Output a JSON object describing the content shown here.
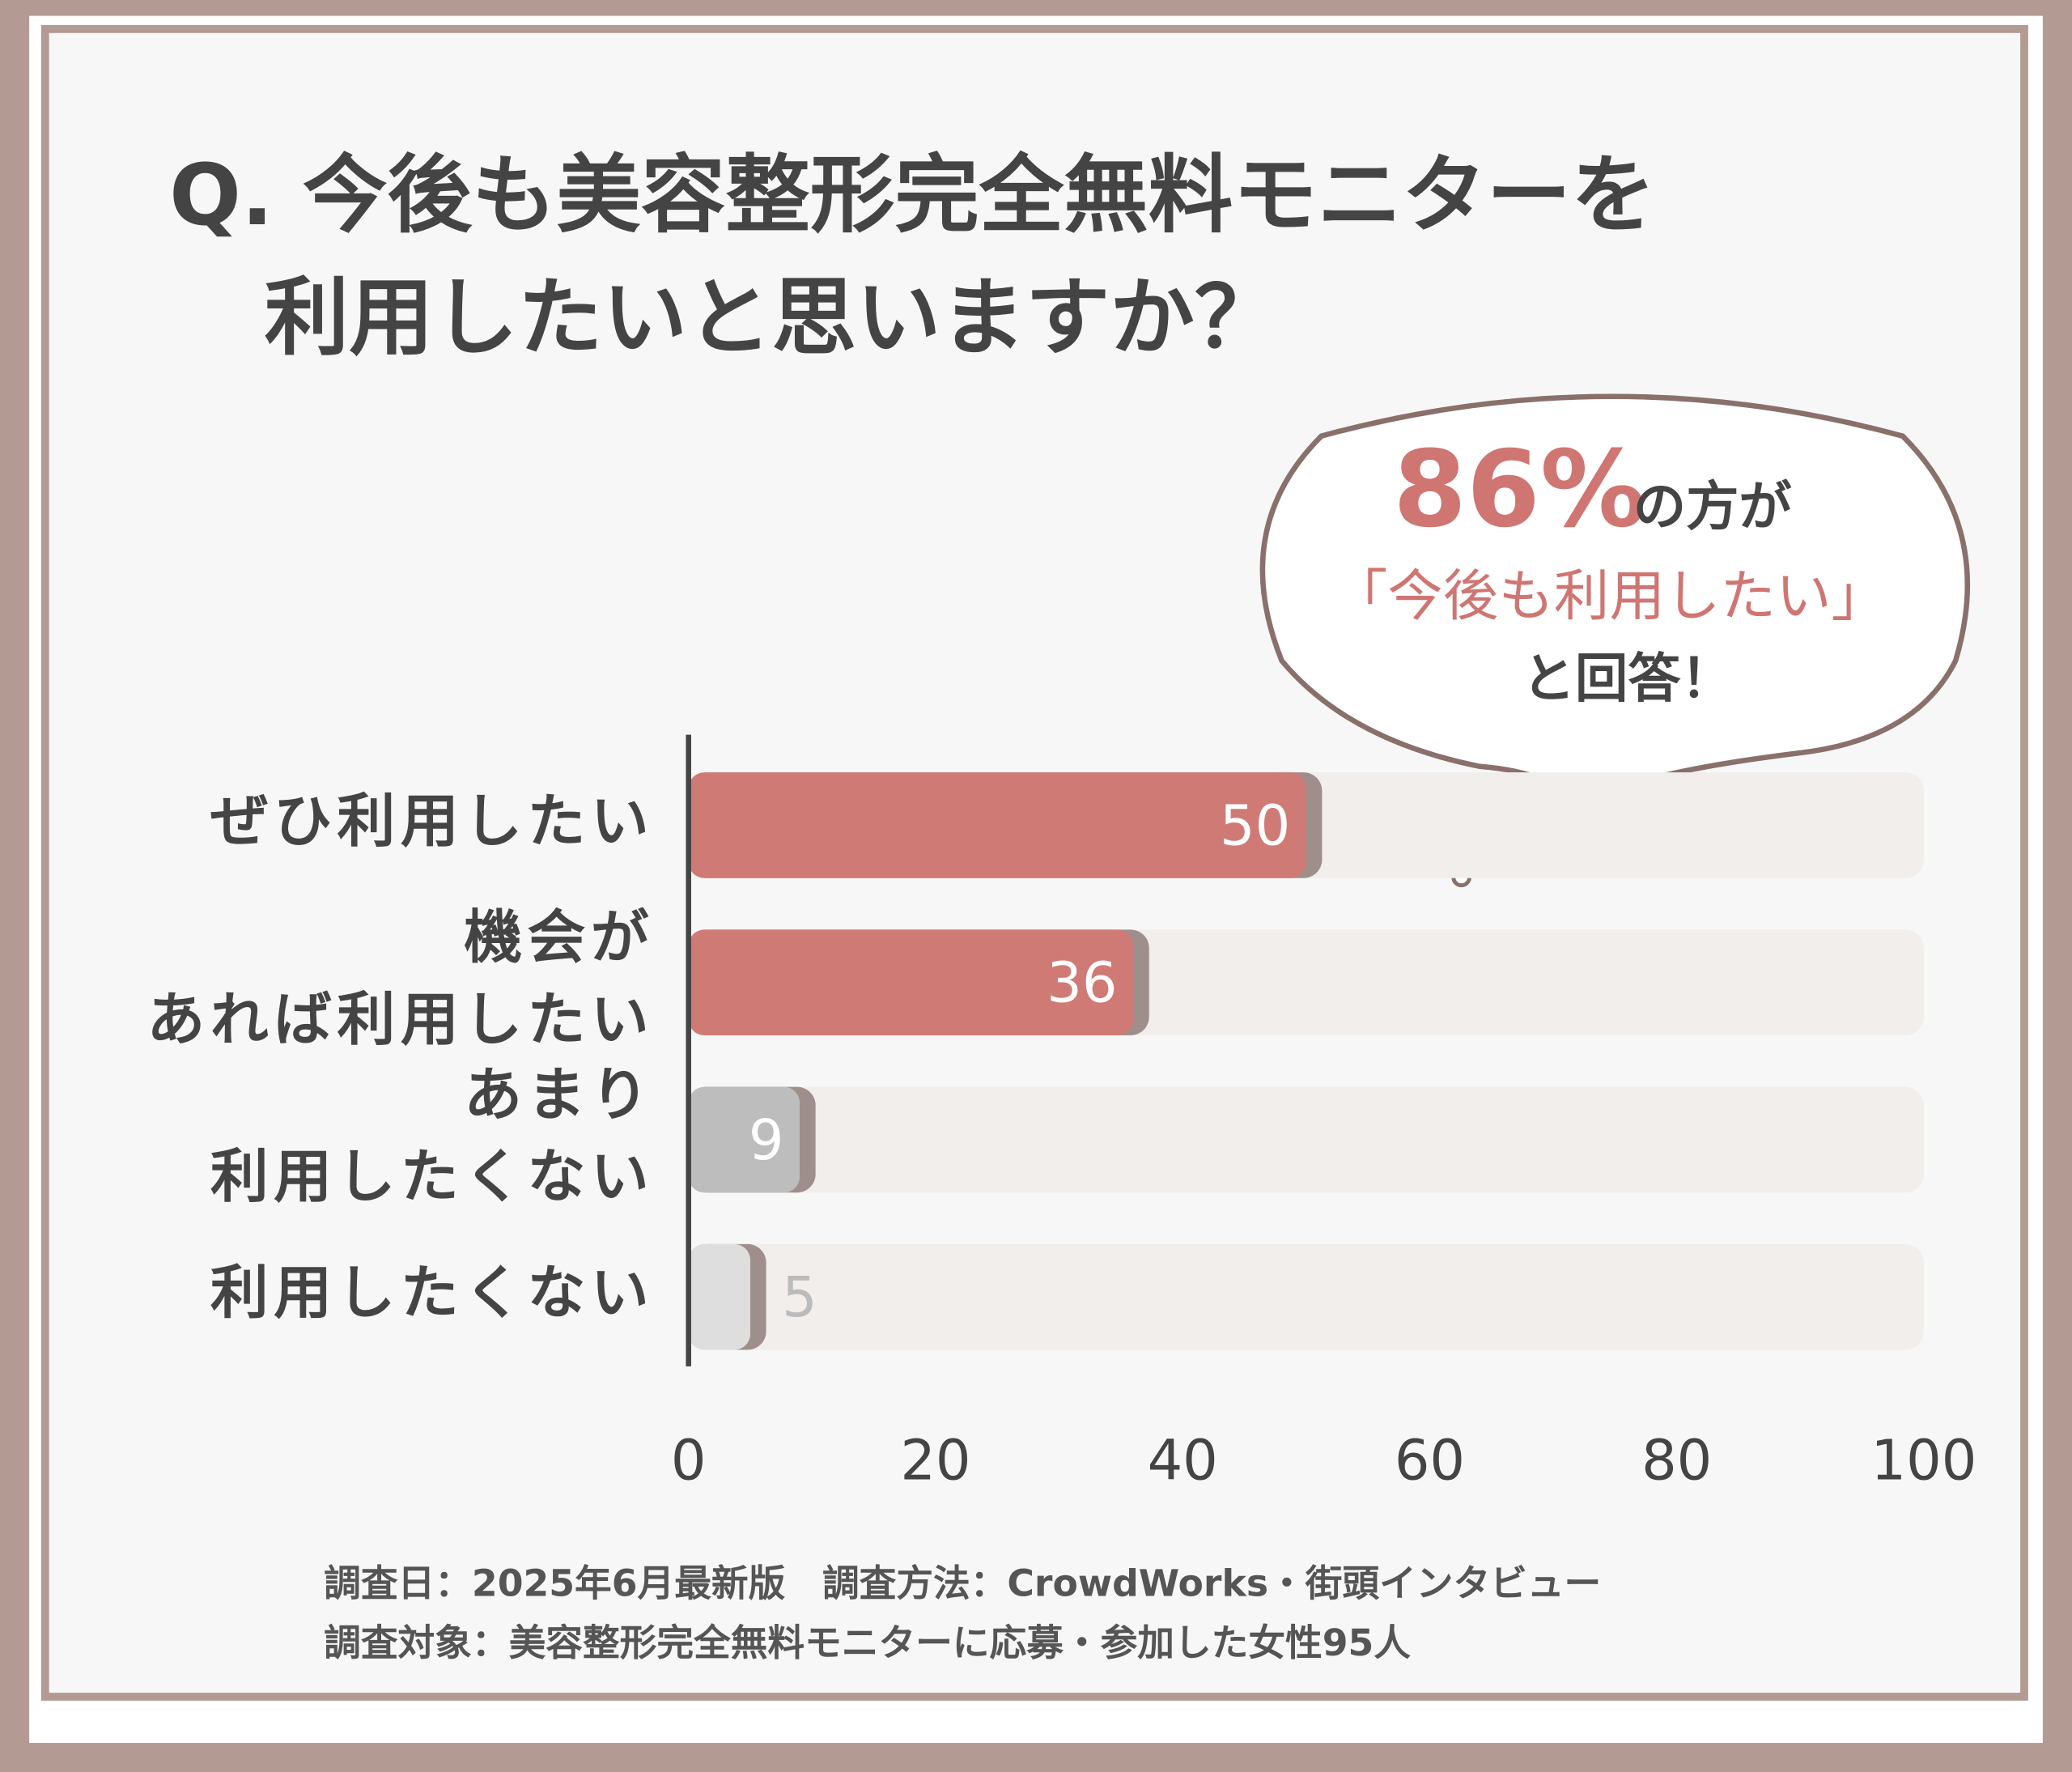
{
  "chart_data": {
    "type": "hbar",
    "title": [
      "Q. 今後も美容整形完全無料モニターを",
      "利用したいと思いますか？"
    ],
    "categories": [
      [
        "ぜひ利用したい"
      ],
      [
        "機会が",
        "あれば利用したい"
      ],
      [
        "あまり",
        "利用したくない"
      ],
      [
        "利用したくない"
      ]
    ],
    "values": [
      50,
      36,
      9,
      5
    ],
    "colors": [
      "#d07a76",
      "#d07a76",
      "#bdbdbd",
      "#dedede"
    ],
    "track_color": "#f1eeec",
    "xlim": [
      0,
      100
    ],
    "xticks": [
      0,
      20,
      40,
      60,
      80,
      100
    ],
    "annotation": {
      "highlight": "86%",
      "lines": [
        "の方が",
        "「今後も利用したい」",
        "と回答！"
      ]
    },
    "footnotes": [
      "調査日：2025年6月最新版　調査方法：CrowdWorks・街頭インタビュー",
      "調査対象：美容整形完全無料モニターに応募・参加した女性95人"
    ]
  }
}
